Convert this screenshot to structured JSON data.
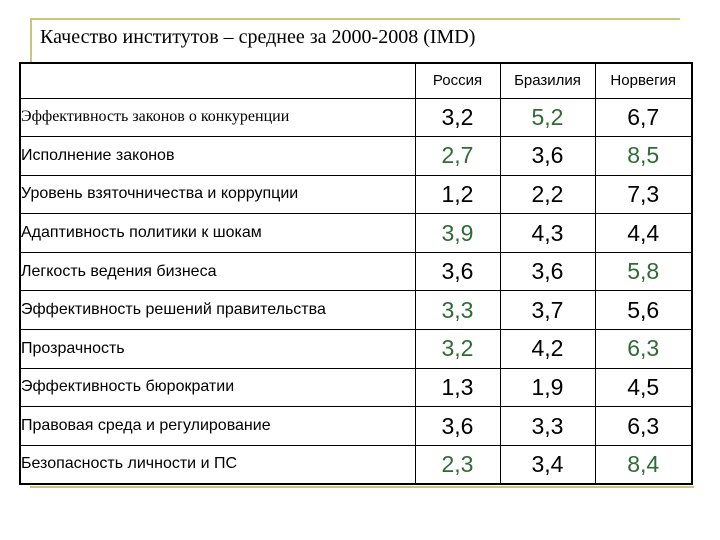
{
  "title": "Качество институтов – среднее за 2000-2008 (IMD)",
  "columns": [
    "Россия",
    "Бразилия",
    "Норвегия"
  ],
  "colors": {
    "highlight": "#2f6b34",
    "default": "#000000",
    "frame": "#c9c57a"
  },
  "rows": [
    {
      "label": "Эффективность законов о конкуренции",
      "values": [
        "3,2",
        "5,2",
        "6,7"
      ],
      "highlight": [
        false,
        true,
        false
      ]
    },
    {
      "label": "Исполнение законов",
      "values": [
        "2,7",
        "3,6",
        "8,5"
      ],
      "highlight": [
        true,
        false,
        true
      ]
    },
    {
      "label": "Уровень взяточничества и коррупции",
      "values": [
        "1,2",
        "2,2",
        "7,3"
      ],
      "highlight": [
        false,
        false,
        false
      ]
    },
    {
      "label": "Адаптивность политики к шокам",
      "values": [
        "3,9",
        "4,3",
        "4,4"
      ],
      "highlight": [
        true,
        false,
        false
      ]
    },
    {
      "label": "Легкость ведения бизнеса",
      "values": [
        "3,6",
        "3,6",
        "5,8"
      ],
      "highlight": [
        false,
        false,
        true
      ]
    },
    {
      "label": "Эффективность решений правительства",
      "values": [
        "3,3",
        "3,7",
        "5,6"
      ],
      "highlight": [
        true,
        false,
        false
      ]
    },
    {
      "label": "Прозрачность",
      "values": [
        "3,2",
        "4,2",
        "6,3"
      ],
      "highlight": [
        true,
        false,
        true
      ]
    },
    {
      "label": "Эффективность бюрократии",
      "values": [
        "1,3",
        "1,9",
        "4,5"
      ],
      "highlight": [
        false,
        false,
        false
      ]
    },
    {
      "label": "Правовая среда и регулирование",
      "values": [
        "3,6",
        "3,3",
        "6,3"
      ],
      "highlight": [
        false,
        false,
        false
      ]
    },
    {
      "label": "Безопасность личности и ПС",
      "values": [
        "2,3",
        "3,4",
        "8,4"
      ],
      "highlight": [
        true,
        false,
        true
      ]
    }
  ]
}
